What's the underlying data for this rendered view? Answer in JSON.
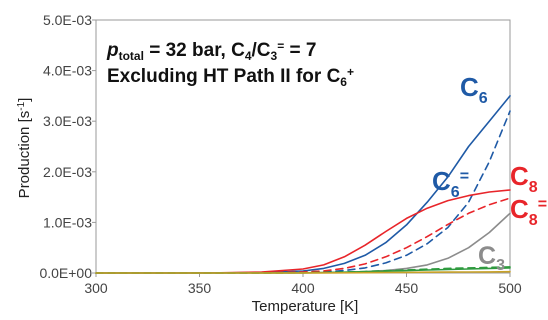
{
  "chart_data": {
    "type": "line",
    "xlabel": "Temperature [K]",
    "ylabel": "Production [s",
    "ylabel_sup": "-1",
    "ylabel_end": "]",
    "xlim": [
      300,
      500
    ],
    "ylim": [
      0,
      0.005
    ],
    "x_ticks": [
      "300",
      "350",
      "400",
      "450",
      "500"
    ],
    "y_ticks": [
      "0.0E+00",
      "1.0E-03",
      "2.0E-03",
      "3.0E-03",
      "4.0E-03",
      "5.0E-03"
    ],
    "grid": false,
    "annotation": {
      "line1": {
        "p": "p",
        "p_sub": "total",
        "eq": " = 32 bar, C",
        "c4_sub": "4",
        "slash": "/C",
        "c3_sub": "3",
        "c3_sup": "=",
        "tail": " = 7"
      },
      "line2": {
        "text": "Excluding HT Path II for C",
        "sub": "6",
        "sup": "+"
      }
    },
    "x": [
      300,
      320,
      340,
      360,
      380,
      400,
      410,
      420,
      430,
      440,
      450,
      460,
      470,
      480,
      490,
      500
    ],
    "series": [
      {
        "label": {
          "base": "C",
          "sub": "6",
          "sup": ""
        },
        "color": "#1f5aa6",
        "dash": false,
        "values": [
          0,
          0,
          0,
          2e-06,
          1e-05,
          4e-05,
          9e-05,
          0.00019,
          0.00035,
          0.0006,
          0.00095,
          0.0014,
          0.0019,
          0.0025,
          0.003,
          0.0035
        ]
      },
      {
        "label": {
          "base": "C",
          "sub": "6",
          "sup": "="
        },
        "color": "#1f5aa6",
        "dash": true,
        "values": [
          0,
          0,
          0,
          0,
          2e-06,
          1e-05,
          2e-05,
          5e-05,
          0.0001,
          0.0002,
          0.00035,
          0.00058,
          0.0009,
          0.0014,
          0.0022,
          0.0032
        ]
      },
      {
        "label": {
          "base": "C",
          "sub": "8",
          "sup": ""
        },
        "color": "#e8252a",
        "dash": false,
        "values": [
          0,
          0,
          0,
          3e-06,
          2e-05,
          8e-05,
          0.00016,
          0.00032,
          0.00055,
          0.00082,
          0.00108,
          0.00128,
          0.00143,
          0.00153,
          0.0016,
          0.00164
        ]
      },
      {
        "label": {
          "base": "C",
          "sub": "8",
          "sup": "="
        },
        "color": "#e8252a",
        "dash": true,
        "values": [
          0,
          0,
          0,
          0,
          4e-06,
          2e-05,
          4e-05,
          9e-05,
          0.00018,
          0.00032,
          0.0005,
          0.00072,
          0.00096,
          0.00118,
          0.00135,
          0.00148
        ]
      },
      {
        "label": {
          "base": "C",
          "sub": "3",
          "sup": ""
        },
        "color": "#8c8c8c",
        "dash": false,
        "values": [
          0,
          0,
          0,
          0,
          0,
          2e-06,
          5e-06,
          1.2e-05,
          2.5e-05,
          5e-05,
          9e-05,
          0.00016,
          0.00029,
          0.0005,
          0.0008,
          0.00118
        ]
      },
      {
        "label": {
          "base": "",
          "sub": "",
          "sup": ""
        },
        "color": "#2e9a3e",
        "dash": true,
        "values": [
          0,
          0,
          0,
          0,
          0,
          4e-06,
          1e-05,
          2e-05,
          3e-05,
          4.5e-05,
          6e-05,
          7.5e-05,
          9e-05,
          0.0001,
          0.00011,
          0.00012
        ]
      },
      {
        "label": {
          "base": "",
          "sub": "",
          "sup": ""
        },
        "color": "#2e9a3e",
        "dash": false,
        "values": [
          0,
          0,
          0,
          0,
          0,
          3e-06,
          8e-06,
          1.5e-05,
          2.5e-05,
          3.5e-05,
          4.8e-05,
          6e-05,
          7e-05,
          8e-05,
          9e-05,
          0.0001
        ]
      },
      {
        "label": {
          "base": "",
          "sub": "",
          "sup": ""
        },
        "color": "#c9a227",
        "dash": false,
        "values": [
          0,
          0,
          0,
          0,
          0,
          1e-06,
          2e-06,
          4e-06,
          6e-06,
          9e-06,
          1.2e-05,
          1.5e-05,
          1.8e-05,
          2e-05,
          2.2e-05,
          2.5e-05
        ]
      }
    ]
  }
}
